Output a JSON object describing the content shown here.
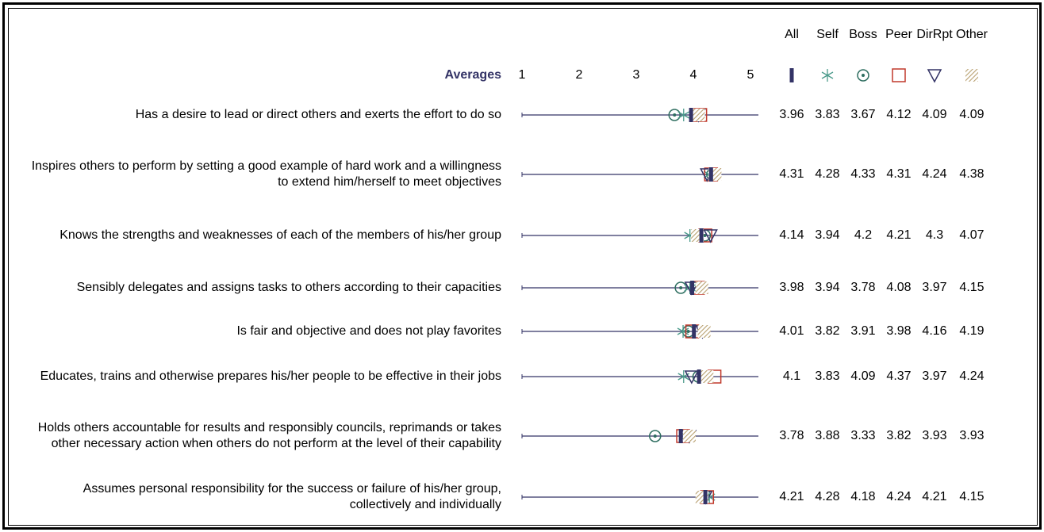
{
  "chart_data": {
    "type": "dot",
    "title": "Averages",
    "xlim": [
      1,
      5
    ],
    "xticks": [
      1,
      2,
      3,
      4,
      5
    ],
    "categories": [
      "Has a desire to lead or direct others and exerts the effort to do so",
      "Inspires others to perform by setting a good example of hard work and a willingness to extend him/herself to meet objectives",
      "Knows the strengths and weaknesses of each of the members of his/her group",
      "Sensibly delegates and assigns tasks to others according to their capacities",
      "Is fair and objective and does not play favorites",
      "Educates, trains and otherwise prepares his/her people to be effective in their jobs",
      "Holds others accountable for results and responsibly councils, reprimands or takes other necessary action when others do not perform at the level of their capability",
      "Assumes personal responsibility for the success or failure of his/her group, collectively and individually"
    ],
    "series": [
      {
        "name": "All",
        "color": "#333366",
        "values": [
          3.96,
          4.31,
          4.14,
          3.98,
          4.01,
          4.1,
          3.78,
          4.21
        ]
      },
      {
        "name": "Self",
        "color": "#4a9a8a",
        "values": [
          3.83,
          4.28,
          3.94,
          3.94,
          3.82,
          3.83,
          3.88,
          4.28
        ]
      },
      {
        "name": "Boss",
        "color": "#2e6e60",
        "values": [
          3.67,
          4.33,
          4.2,
          3.78,
          3.91,
          4.09,
          3.33,
          4.18
        ]
      },
      {
        "name": "Peer",
        "color": "#c0392b",
        "values": [
          4.12,
          4.31,
          4.21,
          4.08,
          3.98,
          4.37,
          3.82,
          4.24
        ]
      },
      {
        "name": "DirRpt",
        "color": "#333366",
        "values": [
          4.09,
          4.24,
          4.3,
          3.97,
          4.16,
          3.97,
          3.93,
          4.21
        ]
      },
      {
        "name": "Other",
        "color": "#b8a070",
        "values": [
          4.09,
          4.38,
          4.07,
          4.15,
          4.19,
          4.24,
          3.93,
          4.15
        ]
      }
    ]
  }
}
